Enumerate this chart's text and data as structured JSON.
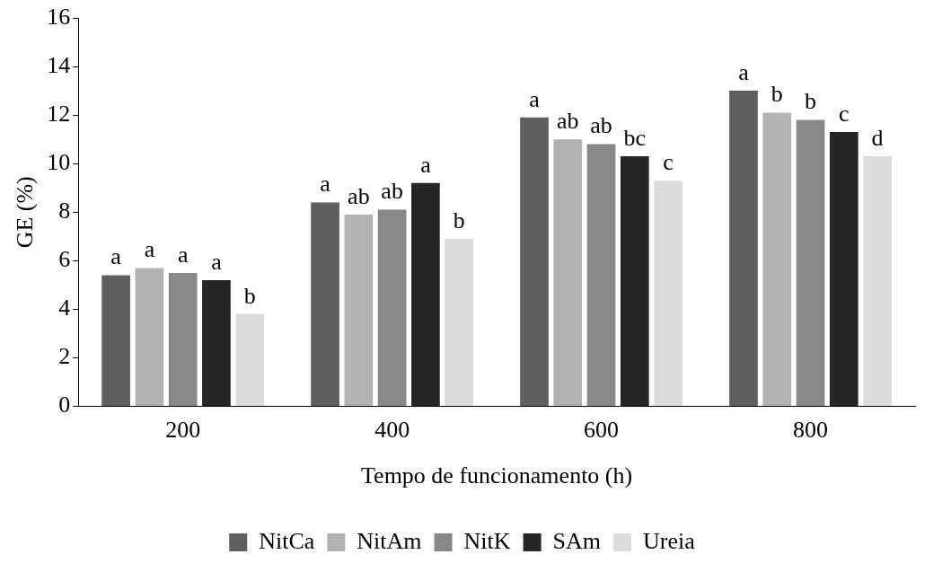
{
  "chart_data": {
    "type": "bar",
    "xlabel": "Tempo de funcionamento (h)",
    "ylabel": "GE (%)",
    "categories": [
      "200",
      "400",
      "600",
      "800"
    ],
    "series": [
      {
        "name": "NitCa",
        "color": "#5f5f5f",
        "values": [
          5.4,
          8.4,
          11.9,
          13.0
        ],
        "value_labels": [
          "a",
          "a",
          "a",
          "a"
        ]
      },
      {
        "name": "NitAm",
        "color": "#b2b2b2",
        "values": [
          5.7,
          7.9,
          11.0,
          12.1
        ],
        "value_labels": [
          "a",
          "ab",
          "ab",
          "b"
        ]
      },
      {
        "name": "NitK",
        "color": "#888888",
        "values": [
          5.5,
          8.1,
          10.8,
          11.8
        ],
        "value_labels": [
          "a",
          "ab",
          "ab",
          "b"
        ]
      },
      {
        "name": "SAm",
        "color": "#262626",
        "values": [
          5.2,
          9.2,
          10.3,
          11.3
        ],
        "value_labels": [
          "a",
          "a",
          "bc",
          "c"
        ]
      },
      {
        "name": "Ureia",
        "color": "#dcdcdc",
        "values": [
          3.8,
          6.9,
          9.3,
          10.3
        ],
        "value_labels": [
          "b",
          "b",
          "c",
          "d"
        ]
      }
    ],
    "ylim": [
      0,
      16
    ],
    "yticks": [
      0,
      2,
      4,
      6,
      8,
      10,
      12,
      14,
      16
    ],
    "grid": false,
    "legend": "bottom"
  }
}
